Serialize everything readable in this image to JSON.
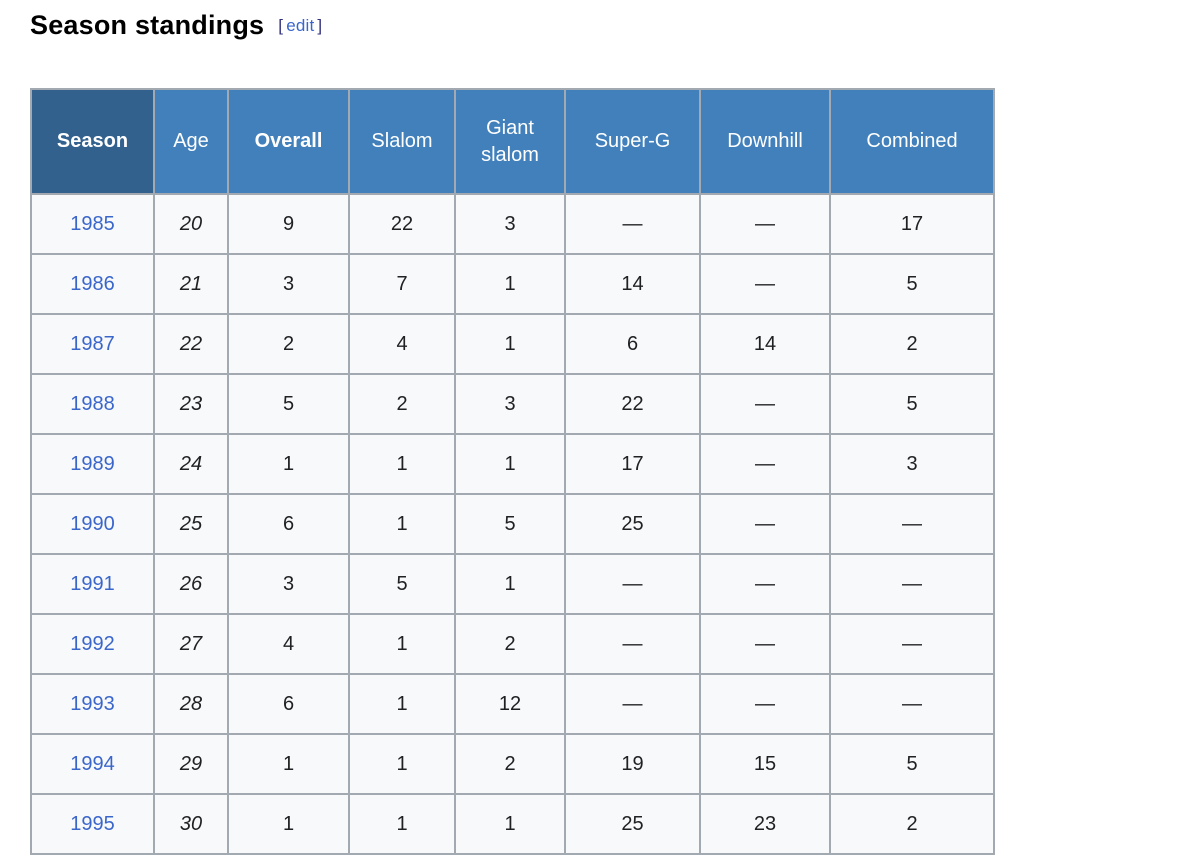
{
  "page": {
    "title": "Season standings",
    "edit": {
      "open_bracket": "[",
      "label": "edit",
      "close_bracket": "]"
    }
  },
  "colors": {
    "gold": "#fcd20b",
    "silver": "#c0c0c0",
    "bronze": "#cb9a65",
    "header_light": "#4180bb",
    "header_dark": "#33618e",
    "cell_bg": "#f8f9fa",
    "link": "#3a66cc"
  },
  "table": {
    "columns": [
      {
        "key": "season",
        "label": "Season",
        "bold": true,
        "dark": true
      },
      {
        "key": "age",
        "label": "Age",
        "bold": false,
        "dark": false
      },
      {
        "key": "overall",
        "label": "Overall",
        "bold": true,
        "dark": false
      },
      {
        "key": "slalom",
        "label": "Slalom",
        "bold": false,
        "dark": false
      },
      {
        "key": "giant",
        "label": "Giant slalom",
        "bold": false,
        "dark": false
      },
      {
        "key": "superg",
        "label": "Super-G",
        "bold": false,
        "dark": false
      },
      {
        "key": "downhill",
        "label": "Downhill",
        "bold": false,
        "dark": false
      },
      {
        "key": "combined",
        "label": "Combined",
        "bold": false,
        "dark": false
      }
    ],
    "rows": [
      {
        "season": "1985",
        "age": "20",
        "results": [
          {
            "value": "9",
            "medal": null
          },
          {
            "value": "22",
            "medal": null
          },
          {
            "value": "3",
            "medal": "bronze"
          },
          {
            "value": "—",
            "medal": null
          },
          {
            "value": "—",
            "medal": null
          },
          {
            "value": "17",
            "medal": null
          }
        ]
      },
      {
        "season": "1986",
        "age": "21",
        "results": [
          {
            "value": "3",
            "medal": "bronze"
          },
          {
            "value": "7",
            "medal": null
          },
          {
            "value": "1",
            "medal": "gold"
          },
          {
            "value": "14",
            "medal": null
          },
          {
            "value": "—",
            "medal": null
          },
          {
            "value": "5",
            "medal": null
          }
        ]
      },
      {
        "season": "1987",
        "age": "22",
        "results": [
          {
            "value": "2",
            "medal": "silver"
          },
          {
            "value": "4",
            "medal": null
          },
          {
            "value": "1",
            "medal": "gold"
          },
          {
            "value": "6",
            "medal": null
          },
          {
            "value": "14",
            "medal": null
          },
          {
            "value": "2",
            "medal": "silver"
          }
        ]
      },
      {
        "season": "1988",
        "age": "23",
        "results": [
          {
            "value": "5",
            "medal": null
          },
          {
            "value": "2",
            "medal": "silver"
          },
          {
            "value": "3",
            "medal": "bronze"
          },
          {
            "value": "22",
            "medal": null
          },
          {
            "value": "—",
            "medal": null
          },
          {
            "value": "5",
            "medal": null
          }
        ]
      },
      {
        "season": "1989",
        "age": "24",
        "results": [
          {
            "value": "1",
            "medal": "gold"
          },
          {
            "value": "1",
            "medal": "gold"
          },
          {
            "value": "1",
            "medal": "gold"
          },
          {
            "value": "17",
            "medal": null
          },
          {
            "value": "—",
            "medal": null
          },
          {
            "value": "3",
            "medal": "bronze"
          }
        ]
      },
      {
        "season": "1990",
        "age": "25",
        "results": [
          {
            "value": "6",
            "medal": null
          },
          {
            "value": "1",
            "medal": "gold"
          },
          {
            "value": "5",
            "medal": null
          },
          {
            "value": "25",
            "medal": null
          },
          {
            "value": "—",
            "medal": null
          },
          {
            "value": "—",
            "medal": null
          }
        ]
      },
      {
        "season": "1991",
        "age": "26",
        "results": [
          {
            "value": "3",
            "medal": "bronze"
          },
          {
            "value": "5",
            "medal": null
          },
          {
            "value": "1",
            "medal": "gold"
          },
          {
            "value": "—",
            "medal": null
          },
          {
            "value": "—",
            "medal": null
          },
          {
            "value": "—",
            "medal": null
          }
        ]
      },
      {
        "season": "1992",
        "age": "27",
        "results": [
          {
            "value": "4",
            "medal": null
          },
          {
            "value": "1",
            "medal": "gold"
          },
          {
            "value": "2",
            "medal": "silver"
          },
          {
            "value": "—",
            "medal": null
          },
          {
            "value": "—",
            "medal": null
          },
          {
            "value": "—",
            "medal": null
          }
        ]
      },
      {
        "season": "1993",
        "age": "28",
        "results": [
          {
            "value": "6",
            "medal": null
          },
          {
            "value": "1",
            "medal": "gold"
          },
          {
            "value": "12",
            "medal": null
          },
          {
            "value": "—",
            "medal": null
          },
          {
            "value": "—",
            "medal": null
          },
          {
            "value": "—",
            "medal": null
          }
        ]
      },
      {
        "season": "1994",
        "age": "29",
        "results": [
          {
            "value": "1",
            "medal": "gold"
          },
          {
            "value": "1",
            "medal": "gold"
          },
          {
            "value": "2",
            "medal": "silver"
          },
          {
            "value": "19",
            "medal": null
          },
          {
            "value": "15",
            "medal": null
          },
          {
            "value": "5",
            "medal": null
          }
        ]
      },
      {
        "season": "1995",
        "age": "30",
        "results": [
          {
            "value": "1",
            "medal": "gold"
          },
          {
            "value": "1",
            "medal": "gold"
          },
          {
            "value": "1",
            "medal": "gold"
          },
          {
            "value": "25",
            "medal": null
          },
          {
            "value": "23",
            "medal": null
          },
          {
            "value": "2",
            "medal": "silver"
          }
        ]
      }
    ]
  }
}
